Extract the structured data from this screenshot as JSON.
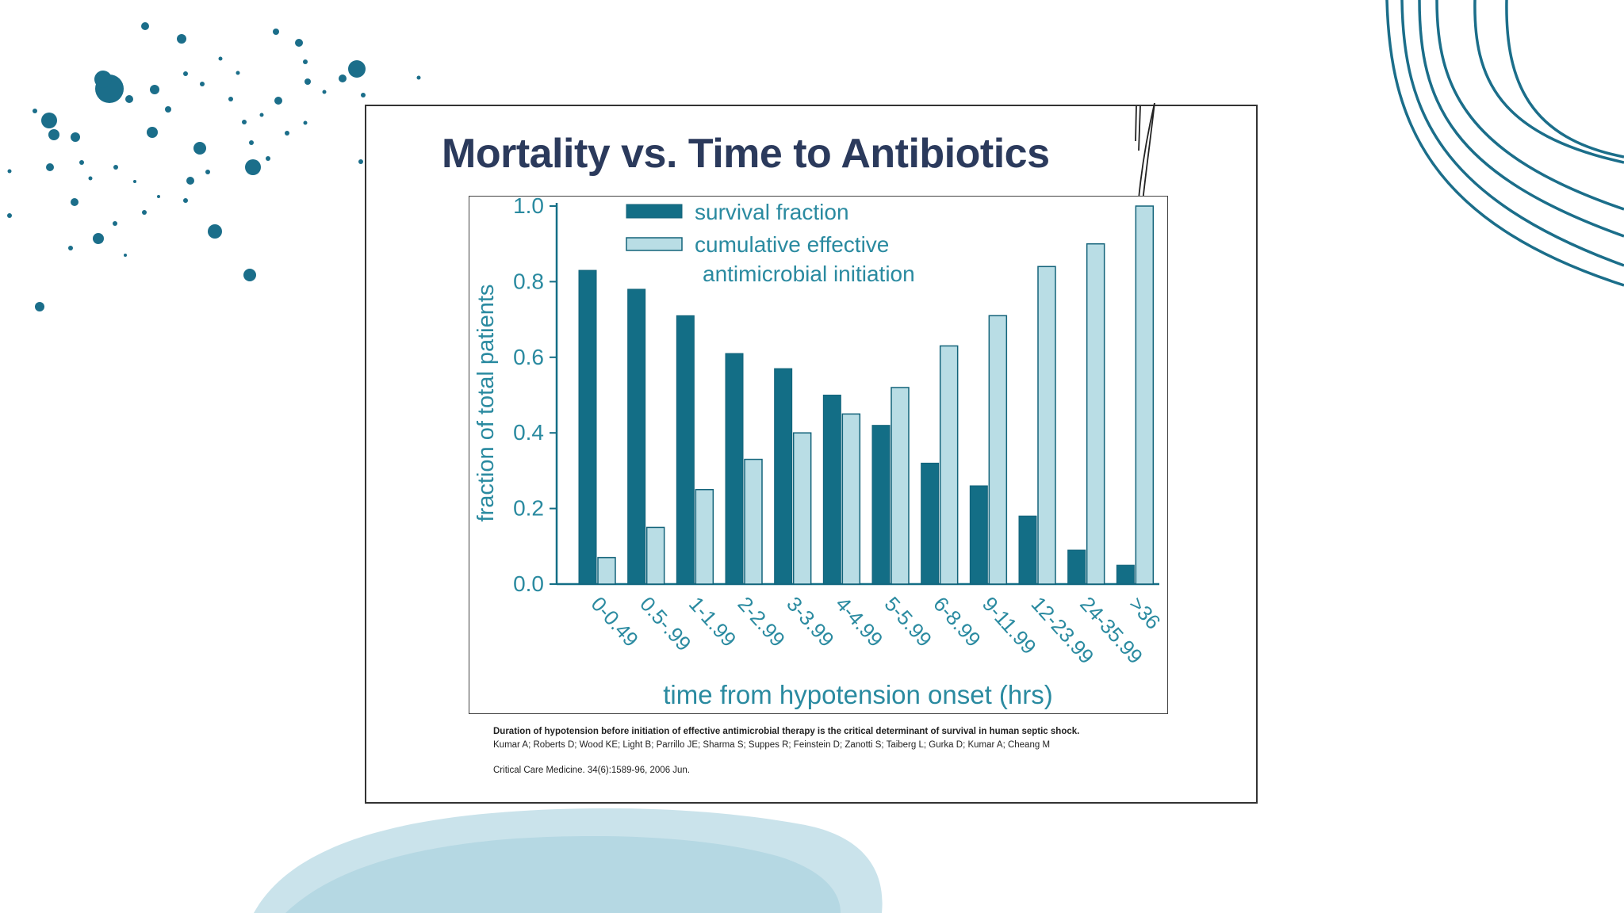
{
  "colors": {
    "accent": "#1b6e8a",
    "survival": "#136e86",
    "cumulative": "#b9dde5",
    "bar_outline": "#13637a",
    "chart_text": "#2a8aa0",
    "slide_title": "#2b3a5c",
    "wash": "#cfe6ee"
  },
  "slide": {
    "title": "Mortality vs. Time to Antibiotics"
  },
  "citation": {
    "title": "Duration of hypotension before initiation of effective antimicrobial therapy is the critical determinant of survival in human septic shock.",
    "authors": "Kumar A; Roberts D; Wood KE; Light B; Parrillo JE; Sharma S; Suppes R; Feinstein D; Zanotti S; Taiberg L; Gurka D; Kumar A; Cheang M",
    "journal": "Critical Care Medicine.  34(6):1589-96, 2006 Jun."
  },
  "chart_data": {
    "type": "bar",
    "title": "",
    "xlabel": "time from hypotension onset (hrs)",
    "ylabel": "fraction of total patients",
    "ylim": [
      0,
      1.0
    ],
    "yticks": [
      "0.0",
      "0.2",
      "0.4",
      "0.6",
      "0.8",
      "1.0"
    ],
    "categories": [
      "0-0.49",
      "0.5-.99",
      "1-1.99",
      "2-2.99",
      "3-3.99",
      "4-4.99",
      "5-5.99",
      "6-8.99",
      "9-11.99",
      "12-23.99",
      "24-35.99",
      ">36"
    ],
    "series": [
      {
        "name": "survival fraction",
        "values": [
          0.83,
          0.78,
          0.71,
          0.61,
          0.57,
          0.5,
          0.42,
          0.32,
          0.26,
          0.18,
          0.09,
          0.05
        ]
      },
      {
        "name": "cumulative effective antimicrobial initiation",
        "values": [
          0.07,
          0.15,
          0.25,
          0.33,
          0.4,
          0.45,
          0.52,
          0.63,
          0.71,
          0.84,
          0.9,
          1.0
        ]
      }
    ],
    "legend": {
      "placement": "top-left",
      "entries": [
        "survival fraction",
        "cumulative effective",
        "antimicrobial initiation"
      ]
    },
    "grid": false
  }
}
